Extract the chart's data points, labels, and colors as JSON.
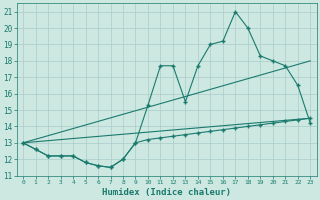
{
  "xlabel": "Humidex (Indice chaleur)",
  "line_color": "#1a7a6e",
  "bg_color": "#cce8e0",
  "grid_color": "#aacccc",
  "xlim": [
    -0.5,
    23.5
  ],
  "ylim": [
    11,
    21.5
  ],
  "xticks": [
    0,
    1,
    2,
    3,
    4,
    5,
    6,
    7,
    8,
    9,
    10,
    11,
    12,
    13,
    14,
    15,
    16,
    17,
    18,
    19,
    20,
    21,
    22,
    23
  ],
  "yticks": [
    11,
    12,
    13,
    14,
    15,
    16,
    17,
    18,
    19,
    20,
    21
  ],
  "series_max": {
    "x": [
      0,
      1,
      2,
      3,
      4,
      5,
      6,
      7,
      8,
      9,
      10,
      11,
      12,
      13,
      14,
      15,
      16,
      17,
      18,
      19,
      20,
      21,
      22,
      23
    ],
    "y": [
      13.0,
      12.6,
      12.2,
      12.2,
      12.2,
      11.8,
      11.6,
      11.5,
      12.0,
      13.0,
      15.3,
      17.7,
      17.7,
      15.5,
      17.7,
      19.0,
      19.2,
      21.0,
      20.0,
      18.3,
      18.0,
      17.7,
      16.5,
      14.2
    ]
  },
  "series_reg_upper": {
    "x": [
      0,
      23
    ],
    "y": [
      13.0,
      18.0
    ]
  },
  "series_reg_lower": {
    "x": [
      0,
      23
    ],
    "y": [
      13.0,
      14.5
    ]
  },
  "series_min": {
    "x": [
      0,
      1,
      2,
      3,
      4,
      5,
      6,
      7,
      8,
      9,
      10,
      11,
      12,
      13,
      14,
      15,
      16,
      17,
      18,
      19,
      20,
      21,
      22,
      23
    ],
    "y": [
      13.0,
      12.6,
      12.2,
      12.2,
      12.2,
      11.8,
      11.6,
      11.5,
      12.0,
      13.0,
      13.2,
      13.3,
      13.4,
      13.5,
      13.6,
      13.7,
      13.8,
      13.9,
      14.0,
      14.1,
      14.2,
      14.3,
      14.4,
      14.5
    ]
  },
  "ylabel_fontsize": 6,
  "tick_fontsize": 5,
  "xlabel_fontsize": 6.5
}
